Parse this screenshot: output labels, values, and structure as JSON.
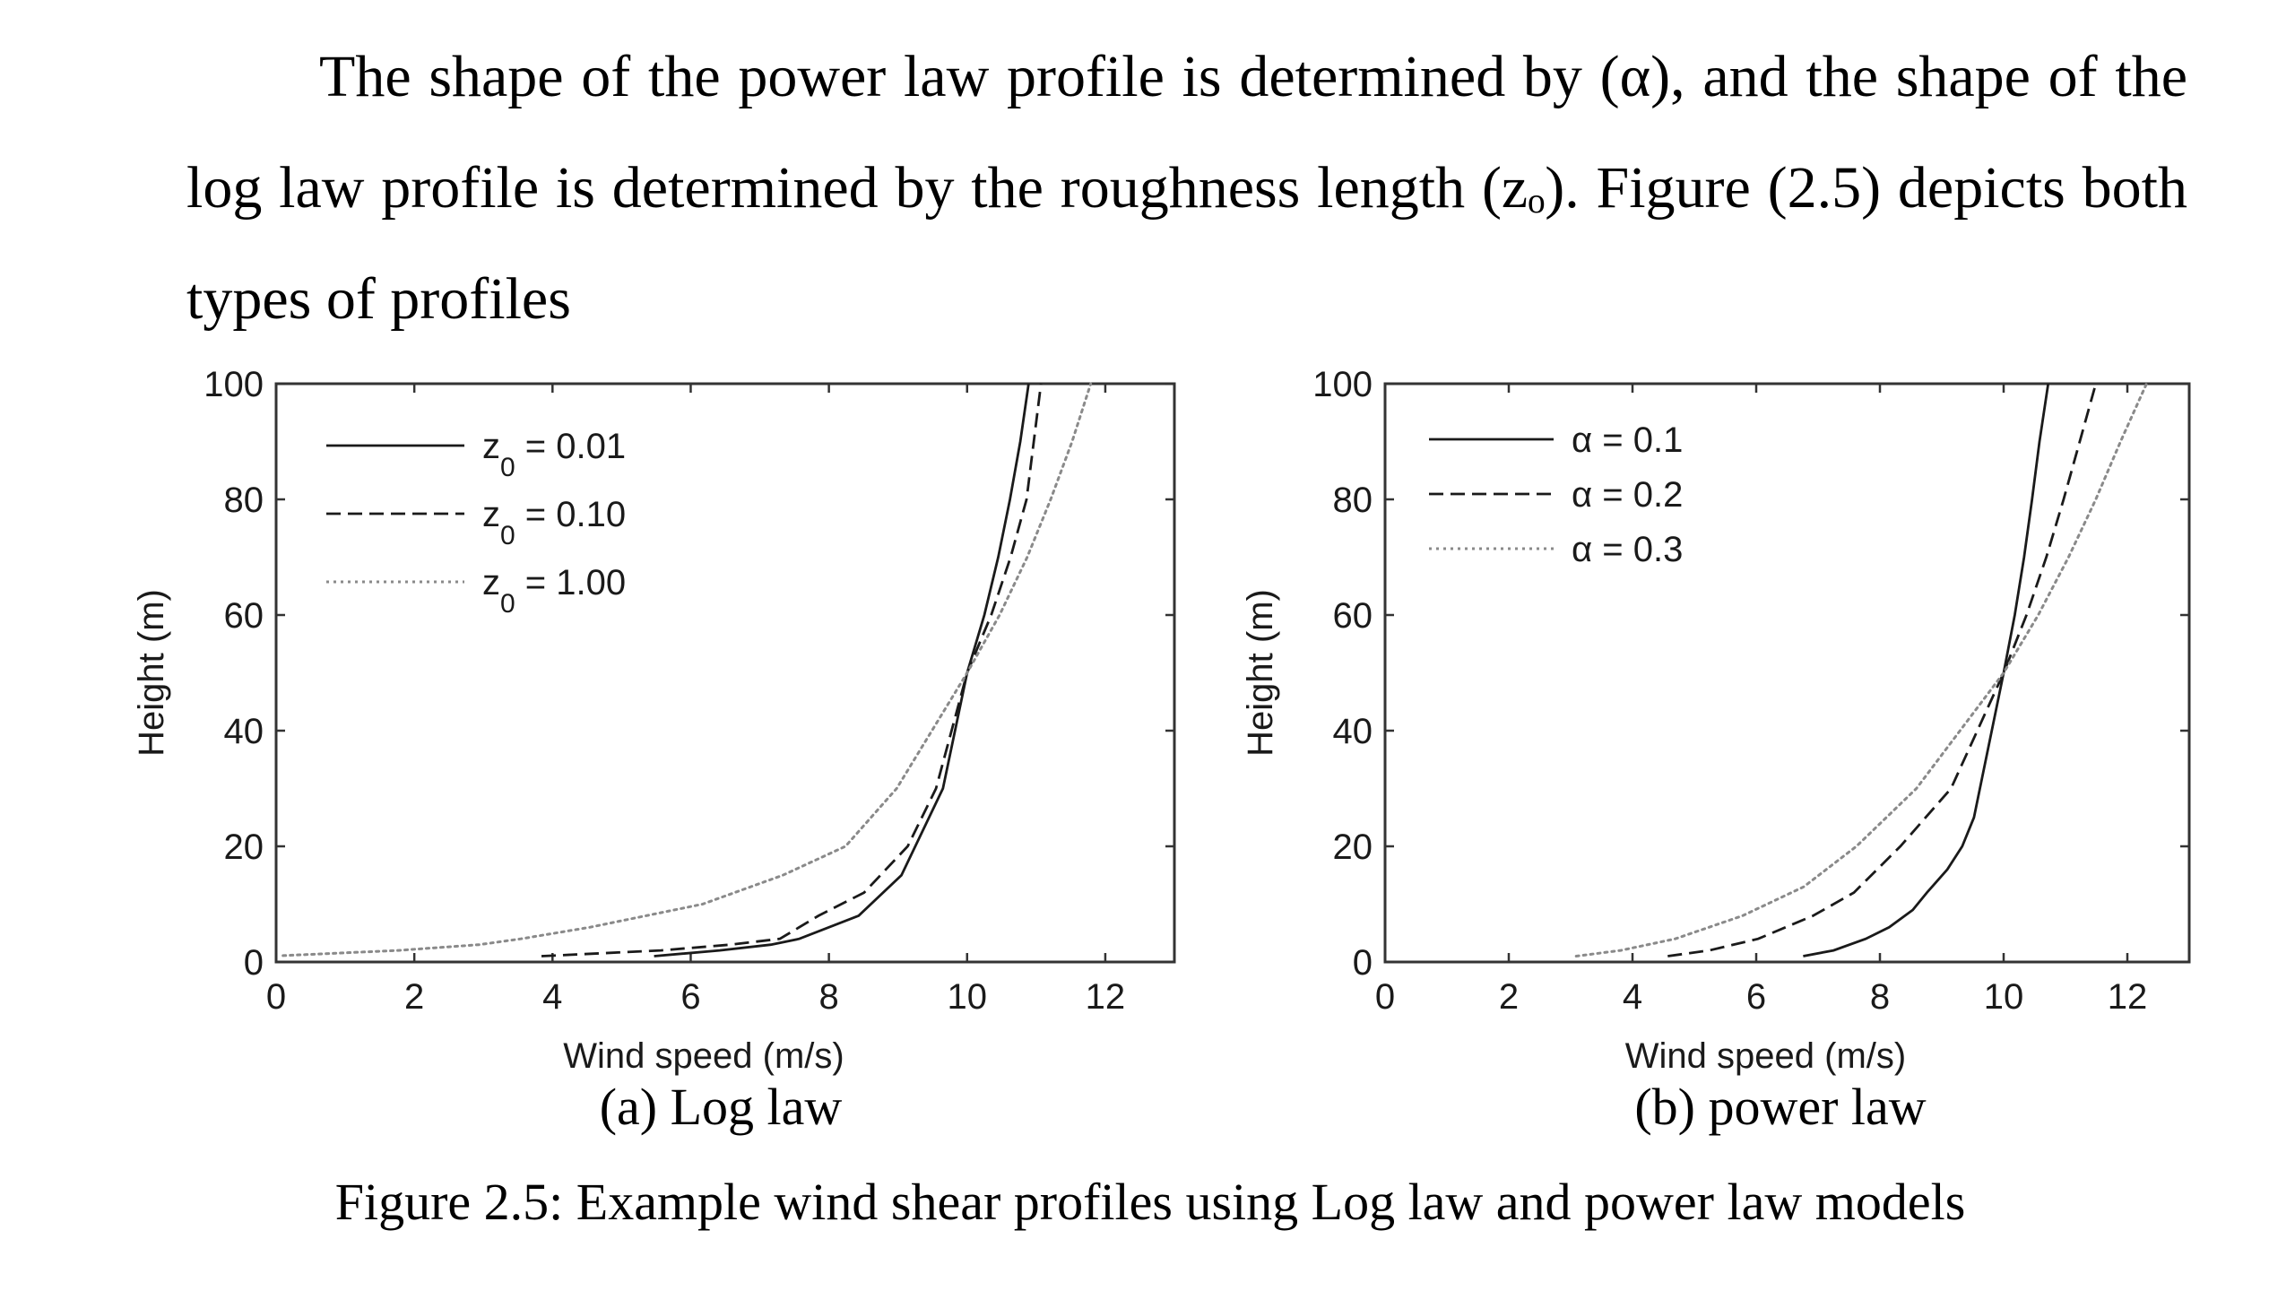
{
  "paragraph": {
    "text": "The shape of the power law profile is determined by (α), and the shape of the log law profile is determined by the roughness length (zₒ). Figure (2.5) depicts both types of profiles"
  },
  "chart_data": [
    {
      "type": "line",
      "caption": "(a) Log law",
      "xlabel": "Wind speed (m/s)",
      "ylabel": "Height (m)",
      "xlim": [
        0,
        13
      ],
      "ylim": [
        0,
        100
      ],
      "xticks": [
        0,
        2,
        4,
        6,
        8,
        10,
        12
      ],
      "yticks": [
        0,
        20,
        40,
        60,
        80,
        100
      ],
      "grid": false,
      "legend": "top-left",
      "series": [
        {
          "name": "z₀ = 0.01",
          "label_main": "z",
          "label_sub": "0",
          "label_rest": " = 0.01",
          "style": "solid",
          "color": "#1a1a1a",
          "x": [
            5.47,
            6.42,
            7.16,
            7.57,
            8.43,
            9.05,
            9.65,
            10.0,
            10.25,
            10.45,
            10.62,
            10.77,
            10.89
          ],
          "y": [
            1,
            2,
            3,
            4,
            8,
            15,
            30,
            50,
            60,
            70,
            80,
            90,
            100
          ]
        },
        {
          "name": "z₀ = 0.10",
          "label_main": "z",
          "label_sub": "0",
          "label_rest": " = 0.10",
          "style": "dashed",
          "color": "#1a1a1a",
          "x": [
            3.84,
            5.57,
            6.57,
            7.29,
            7.85,
            8.51,
            9.14,
            9.55,
            10.0,
            10.35,
            10.63,
            10.86,
            11.07
          ],
          "y": [
            1,
            2,
            3,
            4,
            8,
            12,
            20,
            30,
            50,
            60,
            70,
            80,
            100
          ]
        },
        {
          "name": "z₀ = 1.00",
          "label_main": "z",
          "label_sub": "0",
          "label_rest": " = 1.00",
          "style": "dotted",
          "color": "#8a8a8a",
          "x": [
            0.1,
            1.77,
            2.94,
            3.54,
            4.54,
            6.17,
            7.33,
            8.24,
            8.98,
            10.0,
            10.47,
            10.87,
            11.21,
            11.52,
            11.79
          ],
          "y": [
            1.1,
            2,
            3,
            4,
            6,
            10,
            15,
            20,
            30,
            50,
            60,
            70,
            80,
            90,
            100
          ]
        }
      ]
    },
    {
      "type": "line",
      "caption": "(b) power law",
      "xlabel": "Wind speed (m/s)",
      "ylabel": "Height (m)",
      "xlim": [
        0,
        13
      ],
      "ylim": [
        0,
        100
      ],
      "xticks": [
        0,
        2,
        4,
        6,
        8,
        10,
        12
      ],
      "yticks": [
        0,
        20,
        40,
        60,
        80,
        100
      ],
      "grid": false,
      "legend": "top-left",
      "series": [
        {
          "name": "α = 0.1",
          "label_main": "α = 0.1",
          "label_sub": "",
          "label_rest": "",
          "style": "solid",
          "color": "#1a1a1a",
          "x": [
            6.76,
            7.25,
            7.77,
            8.15,
            8.53,
            8.76,
            9.09,
            9.33,
            9.52,
            10.0,
            10.18,
            10.33,
            10.46,
            10.58,
            10.72
          ],
          "y": [
            1,
            2,
            4,
            6,
            9,
            12,
            16,
            20,
            25,
            50,
            60,
            70,
            80,
            90,
            100
          ]
        },
        {
          "name": "α = 0.2",
          "label_main": "α = 0.2",
          "label_sub": "",
          "label_rest": "",
          "style": "dashed",
          "color": "#1a1a1a",
          "x": [
            4.57,
            5.24,
            6.03,
            6.92,
            7.58,
            8.33,
            9.15,
            10.0,
            10.37,
            10.69,
            10.97,
            11.23,
            11.49
          ],
          "y": [
            1,
            2,
            4,
            8,
            12,
            20,
            30,
            50,
            60,
            70,
            80,
            90,
            100
          ]
        },
        {
          "name": "α = 0.3",
          "label_main": "α = 0.3",
          "label_sub": "",
          "label_rest": "",
          "style": "dotted",
          "color": "#8a8a8a",
          "x": [
            3.09,
            3.81,
            4.69,
            5.78,
            6.77,
            7.62,
            8.59,
            10.0,
            10.56,
            11.05,
            11.49,
            11.89,
            12.31
          ],
          "y": [
            1,
            2,
            4,
            8,
            13,
            20,
            30,
            50,
            60,
            70,
            80,
            90,
            100
          ]
        }
      ]
    }
  ],
  "figure_caption": "Figure 2.5: Example wind shear profiles using Log law and power law models"
}
